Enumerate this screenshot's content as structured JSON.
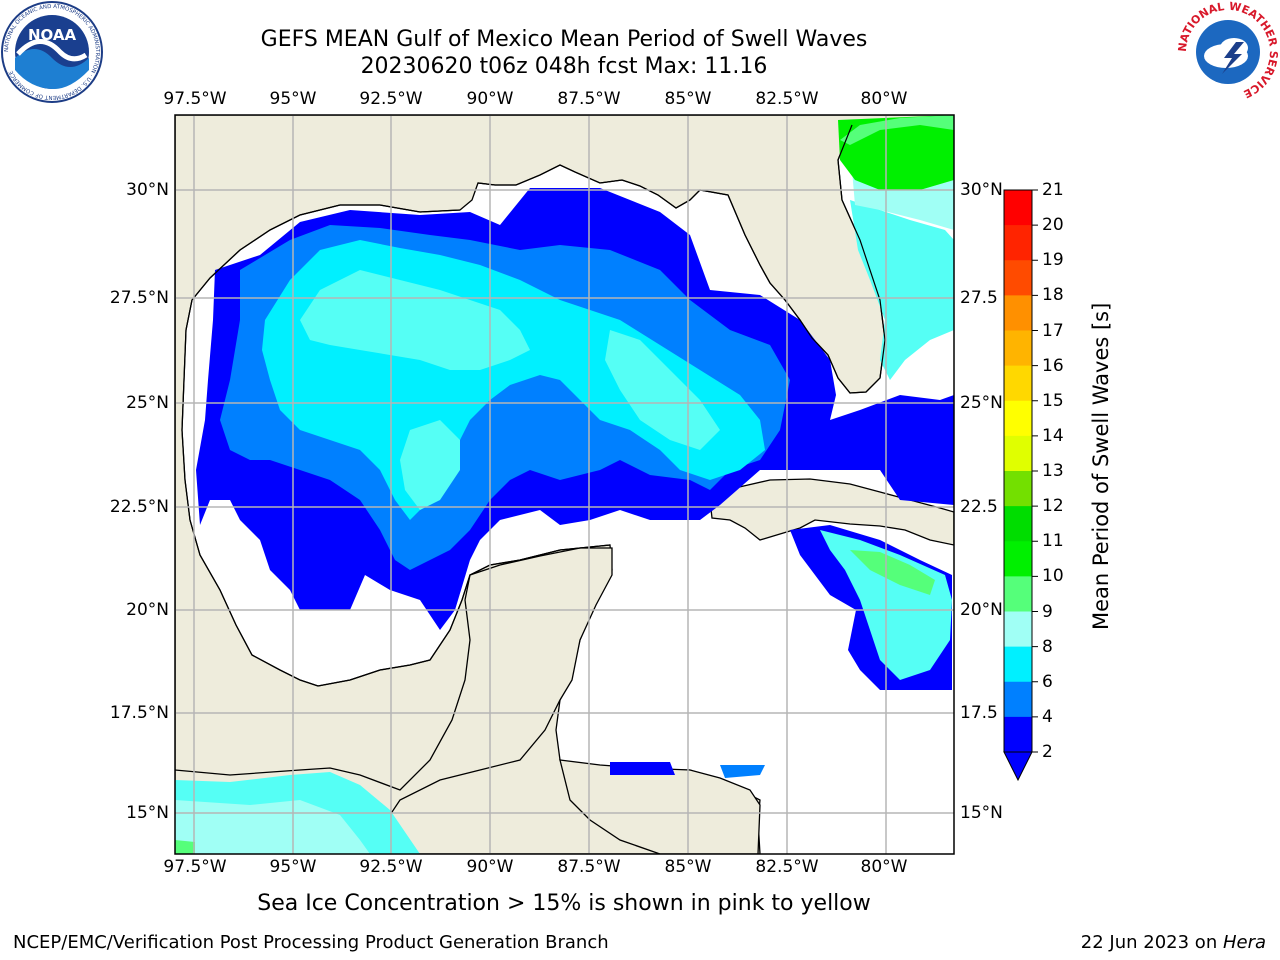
{
  "title": {
    "line1": "GEFS MEAN Gulf of Mexico Mean Period of Swell Waves",
    "line2": "20230620 t06z 048h fcst   Max: 11.16"
  },
  "map": {
    "lon_labels": [
      "97.5°W",
      "95°W",
      "92.5°W",
      "90°W",
      "87.5°W",
      "85°W",
      "82.5°W",
      "80°W"
    ],
    "lat_labels_left": [
      "30°N",
      "27.5°N",
      "25°N",
      "22.5°N",
      "20°N",
      "17.5°N",
      "15°N"
    ],
    "lat_labels_right": [
      "30°N",
      "27.5",
      "25°N",
      "22.5",
      "20°N",
      "17.5",
      "15°N"
    ],
    "land_color": "#eeecdc",
    "grid_color": "#b5b5b5"
  },
  "colorbar": {
    "title": "Mean Period of Swell Waves [s]",
    "ticks": [
      "21",
      "20",
      "19",
      "18",
      "17",
      "16",
      "15",
      "14",
      "13",
      "12",
      "11",
      "10",
      "9",
      "8",
      "6",
      "4",
      "2"
    ],
    "colors": [
      "#ff0000",
      "#ff2400",
      "#ff4b00",
      "#ff6e00",
      "#ff9000",
      "#ffb400",
      "#ffd800",
      "#ffff00",
      "#e0ff00",
      "#c2f000",
      "#73e000",
      "#00dd00",
      "#00f000",
      "#55ff7a",
      "#a0fff5",
      "#55fff5",
      "#00f0ff",
      "#0080ff",
      "#0000ff"
    ],
    "extend_color": "#0000ff"
  },
  "logos": {
    "noaa_text": "NOAA",
    "noaa_ring": "NATIONAL OCEANIC AND ATMOSPHERIC ADMINISTRATION · U.S. DEPARTMENT OF COMMERCE",
    "nws_ring": "NATIONAL WEATHER SERVICE"
  },
  "footer": {
    "note": "Sea Ice Concentration > 15% is shown in pink to yellow",
    "credit_left": "NCEP/EMC/Verification Post Processing Product Generation Branch",
    "credit_right_prefix": "22 Jun 2023 on ",
    "credit_right_host": "Hera"
  }
}
